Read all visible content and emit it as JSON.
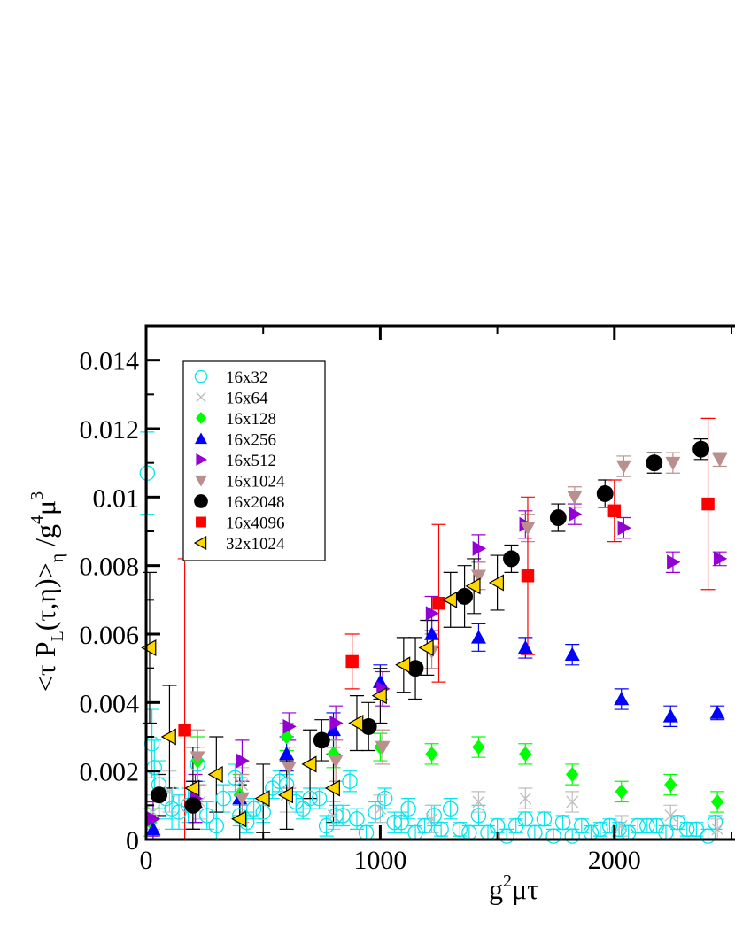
{
  "chart_data": {
    "type": "scatter",
    "xlabel": "g",
    "xlabel_sup": "2",
    "xlabel_rest": "μτ",
    "ylabel_parts": {
      "a": "<τ P",
      "a_sub": "L",
      "b": "(τ,η)>",
      "b_sub": "η",
      "c": " /g",
      "c_sup": "4",
      "d": "μ",
      "d_sup": "3"
    },
    "xlim": [
      0,
      2500
    ],
    "ylim": [
      0,
      0.015
    ],
    "x_ticks": [
      0,
      1000,
      2000
    ],
    "x_tick_labels": [
      "0",
      "1000",
      "2000"
    ],
    "y_ticks": [
      0,
      0.002,
      0.004,
      0.006,
      0.008,
      0.01,
      0.012,
      0.014
    ],
    "y_tick_labels": [
      "0",
      "0.002",
      "0.004",
      "0.006",
      "0.008",
      "0.01",
      "0.012",
      "0.014"
    ],
    "legend_position": "top-left",
    "series": [
      {
        "name": "16x32",
        "marker": "circle-open",
        "color": "#00e5ee",
        "points": [
          [
            5,
            0.0107,
            0.0012
          ],
          [
            25,
            0.0028,
            0.001
          ],
          [
            35,
            0.0021,
            0.0008
          ],
          [
            55,
            0.0016,
            0.0007
          ],
          [
            85,
            0.0012,
            0.0006
          ],
          [
            110,
            0.0009,
            0.0006
          ],
          [
            140,
            0.0008,
            0.0005
          ],
          [
            180,
            0.001,
            0.0005
          ],
          [
            220,
            0.0022,
            0.0005
          ],
          [
            260,
            0.0007,
            0.0004
          ],
          [
            300,
            0.0004,
            0.0004
          ],
          [
            330,
            0.0012,
            0.0004
          ],
          [
            380,
            0.0018,
            0.0004
          ],
          [
            400,
            0.0007,
            0.0003
          ],
          [
            430,
            0.0005,
            0.0003
          ],
          [
            460,
            0.0009,
            0.0003
          ],
          [
            500,
            0.0008,
            0.0003
          ],
          [
            540,
            0.0015,
            0.0003
          ],
          [
            570,
            0.0017,
            0.0003
          ],
          [
            600,
            0.0016,
            0.0003
          ],
          [
            640,
            0.0011,
            0.0003
          ],
          [
            670,
            0.0009,
            0.0003
          ],
          [
            700,
            0.0012,
            0.0003
          ],
          [
            740,
            0.0012,
            0.0003
          ],
          [
            770,
            0.0004,
            0.0003
          ],
          [
            810,
            0.0007,
            0.0003
          ],
          [
            840,
            0.0007,
            0.0003
          ],
          [
            870,
            0.0017,
            0.0003
          ],
          [
            900,
            0.0006,
            0.0003
          ],
          [
            940,
            0.0002,
            0.0002
          ],
          [
            980,
            0.0008,
            0.0003
          ],
          [
            1020,
            0.0012,
            0.0003
          ],
          [
            1060,
            0.0005,
            0.0003
          ],
          [
            1090,
            0.0005,
            0.0003
          ],
          [
            1120,
            0.0009,
            0.0003
          ],
          [
            1150,
            0.0002,
            0.0002
          ],
          [
            1190,
            0.0004,
            0.0002
          ],
          [
            1230,
            0.0007,
            0.0003
          ],
          [
            1260,
            0.0003,
            0.0002
          ],
          [
            1300,
            0.0009,
            0.0003
          ],
          [
            1340,
            0.0003,
            0.0002
          ],
          [
            1380,
            0.0002,
            0.0002
          ],
          [
            1420,
            0.0007,
            0.0003
          ],
          [
            1460,
            0.0002,
            0.0002
          ],
          [
            1500,
            0.0004,
            0.0002
          ],
          [
            1540,
            0.0001,
            0.0002
          ],
          [
            1580,
            0.0004,
            0.0002
          ],
          [
            1620,
            0.0006,
            0.0002
          ],
          [
            1660,
            0.0002,
            0.0002
          ],
          [
            1700,
            0.0006,
            0.0002
          ],
          [
            1740,
            0.0001,
            0.0002
          ],
          [
            1780,
            0.0005,
            0.0002
          ],
          [
            1820,
            0.0001,
            0.0002
          ],
          [
            1860,
            0.0004,
            0.0002
          ],
          [
            1900,
            0.0002,
            0.0002
          ],
          [
            1940,
            0.0003,
            0.0002
          ],
          [
            1980,
            0.0004,
            0.0002
          ],
          [
            2020,
            0.0003,
            0.0002
          ],
          [
            2060,
            0.0002,
            0.0002
          ],
          [
            2100,
            0.0004,
            0.0002
          ],
          [
            2140,
            0.0004,
            0.0002
          ],
          [
            2180,
            0.0004,
            0.0002
          ],
          [
            2220,
            0.0002,
            0.0002
          ],
          [
            2270,
            0.0005,
            0.0002
          ],
          [
            2310,
            0.0003,
            0.0002
          ],
          [
            2350,
            0.0003,
            0.0002
          ],
          [
            2400,
            0.0001,
            0.0002
          ],
          [
            2430,
            0.0005,
            0.0002
          ]
        ]
      },
      {
        "name": "16x64",
        "marker": "x",
        "color": "#bebebe",
        "points": [
          [
            30,
            0.0008,
            0.0005
          ],
          [
            100,
            0.0014,
            0.0006
          ],
          [
            230,
            0.0011,
            0.0005
          ],
          [
            410,
            0.0016,
            0.0005
          ],
          [
            600,
            0.0013,
            0.0005
          ],
          [
            800,
            0.0007,
            0.0004
          ],
          [
            1000,
            0.0009,
            0.0004
          ],
          [
            1220,
            0.0006,
            0.0004
          ],
          [
            1420,
            0.0011,
            0.0003
          ],
          [
            1620,
            0.0012,
            0.0003
          ],
          [
            1820,
            0.0011,
            0.0003
          ],
          [
            2030,
            0.0004,
            0.0003
          ],
          [
            2240,
            0.0007,
            0.0003
          ],
          [
            2440,
            0.0003,
            0.0003
          ]
        ]
      },
      {
        "name": "16x128",
        "marker": "diamond",
        "color": "#00ff00",
        "points": [
          [
            20,
            0.0005,
            0.0004
          ],
          [
            220,
            0.0023,
            0.0007
          ],
          [
            400,
            0.0013,
            0.0006
          ],
          [
            600,
            0.003,
            0.0004
          ],
          [
            800,
            0.0025,
            0.0004
          ],
          [
            1000,
            0.0027,
            0.0004
          ],
          [
            1220,
            0.0025,
            0.0003
          ],
          [
            1420,
            0.0027,
            0.0003
          ],
          [
            1620,
            0.0025,
            0.0003
          ],
          [
            1820,
            0.0019,
            0.0003
          ],
          [
            2030,
            0.0014,
            0.0003
          ],
          [
            2240,
            0.0016,
            0.0003
          ],
          [
            2440,
            0.0011,
            0.0003
          ]
        ]
      },
      {
        "name": "16x256",
        "marker": "triangle-up",
        "color": "#0000ff",
        "points": [
          [
            30,
            0.0003,
            0.0004
          ],
          [
            210,
            0.0011,
            0.0006
          ],
          [
            400,
            0.0012,
            0.0006
          ],
          [
            600,
            0.0025,
            0.0005
          ],
          [
            800,
            0.0032,
            0.0005
          ],
          [
            1000,
            0.0046,
            0.0005
          ],
          [
            1220,
            0.006,
            0.0004
          ],
          [
            1420,
            0.0059,
            0.0004
          ],
          [
            1620,
            0.0056,
            0.0003
          ],
          [
            1820,
            0.0054,
            0.0003
          ],
          [
            2030,
            0.0041,
            0.0003
          ],
          [
            2240,
            0.0036,
            0.0003
          ],
          [
            2440,
            0.0037,
            0.0002
          ]
        ]
      },
      {
        "name": "16x512",
        "marker": "triangle-right",
        "color": "#9400d3",
        "points": [
          [
            30,
            0.0006,
            0.0005
          ],
          [
            210,
            0.0012,
            0.0007
          ],
          [
            410,
            0.0023,
            0.0006
          ],
          [
            610,
            0.0033,
            0.0004
          ],
          [
            810,
            0.0034,
            0.0005
          ],
          [
            1010,
            0.0044,
            0.0005
          ],
          [
            1220,
            0.0066,
            0.0005
          ],
          [
            1420,
            0.0085,
            0.0004
          ],
          [
            1620,
            0.0092,
            0.0004
          ],
          [
            1830,
            0.0095,
            0.0003
          ],
          [
            2040,
            0.0091,
            0.0003
          ],
          [
            2250,
            0.0081,
            0.0003
          ],
          [
            2450,
            0.0082,
            0.0002
          ]
        ]
      },
      {
        "name": "16x1024",
        "marker": "triangle-down",
        "color": "#bc8f8f",
        "points": [
          [
            220,
            0.0024,
            0.0008
          ],
          [
            410,
            0.0012,
            0.0007
          ],
          [
            610,
            0.0021,
            0.0006
          ],
          [
            810,
            0.0023,
            0.0006
          ],
          [
            1010,
            0.0027,
            0.0005
          ],
          [
            1220,
            0.0055,
            0.0005
          ],
          [
            1420,
            0.0077,
            0.0004
          ],
          [
            1630,
            0.0091,
            0.0004
          ],
          [
            1830,
            0.01,
            0.0003
          ],
          [
            2040,
            0.0109,
            0.0003
          ],
          [
            2250,
            0.011,
            0.0003
          ],
          [
            2450,
            0.0111,
            0.0002
          ]
        ]
      },
      {
        "name": "16x2048",
        "marker": "circle-filled",
        "color": "#000000",
        "points": [
          [
            55,
            0.0013,
            0.0006
          ],
          [
            200,
            0.001,
            0.0007
          ],
          [
            750,
            0.0029,
            0.0006
          ],
          [
            950,
            0.0033,
            0.0007
          ],
          [
            1150,
            0.005,
            0.0009
          ],
          [
            1360,
            0.0071,
            0.0009
          ],
          [
            1560,
            0.0082,
            0.0004
          ],
          [
            1760,
            0.0094,
            0.0004
          ],
          [
            1960,
            0.0101,
            0.0004
          ],
          [
            2170,
            0.011,
            0.0003
          ],
          [
            2370,
            0.0114,
            0.0003
          ]
        ]
      },
      {
        "name": "16x4096",
        "marker": "square",
        "color": "#ff0000",
        "points": [
          [
            165,
            0.0032,
            0.005
          ],
          [
            880,
            0.0052,
            0.0008
          ],
          [
            1250,
            0.0069,
            0.0023
          ],
          [
            1630,
            0.0077,
            0.0023
          ],
          [
            2000,
            0.0096,
            0.0009
          ],
          [
            2400,
            0.0098,
            0.0025
          ]
        ]
      },
      {
        "name": "32x1024",
        "marker": "triangle-left",
        "color": "#ffd700",
        "points": [
          [
            15,
            0.0056,
            0.0022
          ],
          [
            100,
            0.003,
            0.0015
          ],
          [
            200,
            0.0015,
            0.0012
          ],
          [
            300,
            0.0019,
            0.0011
          ],
          [
            400,
            0.0006,
            0.001
          ],
          [
            500,
            0.0012,
            0.001
          ],
          [
            600,
            0.0013,
            0.001
          ],
          [
            700,
            0.0022,
            0.001
          ],
          [
            800,
            0.0015,
            0.001
          ],
          [
            900,
            0.0034,
            0.0008
          ],
          [
            1000,
            0.0042,
            0.0008
          ],
          [
            1100,
            0.0051,
            0.0008
          ],
          [
            1200,
            0.0056,
            0.0008
          ],
          [
            1300,
            0.007,
            0.0008
          ],
          [
            1400,
            0.0074,
            0.0008
          ],
          [
            1500,
            0.0075,
            0.0008
          ]
        ]
      }
    ]
  }
}
